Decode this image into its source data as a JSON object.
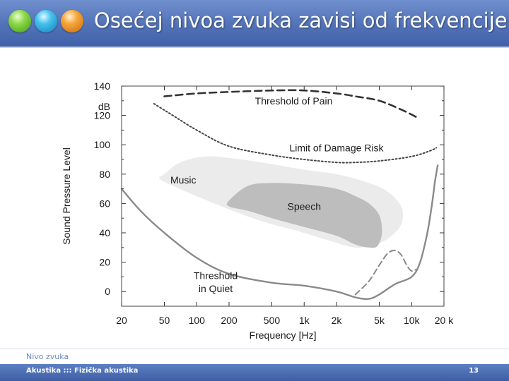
{
  "slide": {
    "title": "Osećej nivoa zvuka zavisi od frekvencije",
    "subtitle": "Nivo zvuka",
    "footer_text": "Akustika ::: Fizička akustika",
    "page_number": "13",
    "colors": {
      "header": "#5272b8",
      "footer": "#4a6ab3",
      "ball_green": "#6cc42f",
      "ball_blue": "#2ea6de",
      "ball_orange": "#ef8a1e"
    }
  },
  "chart_data": {
    "type": "line",
    "xlabel": "Frequency [Hz]",
    "ylabel": "Sound Pressure Level",
    "yunit": "dB",
    "x_scale": "log",
    "xlim": [
      20,
      20000
    ],
    "ylim": [
      -10,
      140
    ],
    "x_ticks": [
      {
        "value": 20,
        "label": "20"
      },
      {
        "value": 50,
        "label": "50"
      },
      {
        "value": 100,
        "label": "100"
      },
      {
        "value": 200,
        "label": "200"
      },
      {
        "value": 500,
        "label": "500"
      },
      {
        "value": 1000,
        "label": "1k"
      },
      {
        "value": 2000,
        "label": "2k"
      },
      {
        "value": 5000,
        "label": "5k"
      },
      {
        "value": 10000,
        "label": "10k"
      },
      {
        "value": 20000,
        "label": "20 k"
      }
    ],
    "y_ticks": [
      {
        "value": 0,
        "label": "0"
      },
      {
        "value": 20,
        "label": "20"
      },
      {
        "value": 40,
        "label": "40"
      },
      {
        "value": 60,
        "label": "60"
      },
      {
        "value": 80,
        "label": "80"
      },
      {
        "value": 100,
        "label": "100"
      },
      {
        "value": 120,
        "label": "120"
      },
      {
        "value": 140,
        "label": "140"
      }
    ],
    "series": [
      {
        "name": "Threshold of Pain",
        "style": "dashed",
        "x": [
          50,
          100,
          200,
          500,
          1000,
          2000,
          3000,
          5000,
          8000,
          11000
        ],
        "y": [
          133,
          135,
          136,
          137,
          137,
          135,
          133,
          130,
          124,
          119
        ]
      },
      {
        "name": "Limit of Damage Risk",
        "style": "dotted",
        "x": [
          40,
          60,
          100,
          200,
          500,
          1000,
          2000,
          3000,
          5000,
          10000,
          15000,
          17000
        ],
        "y": [
          128,
          120,
          110,
          99,
          93,
          90,
          88,
          88,
          89,
          92,
          96,
          98
        ]
      },
      {
        "name": "Threshold in Quiet",
        "style": "solid",
        "x": [
          20,
          30,
          50,
          100,
          200,
          500,
          1000,
          2000,
          3000,
          4000,
          5000,
          7000,
          10000,
          12000,
          14000,
          15500,
          16500,
          17500
        ],
        "y": [
          70,
          55,
          40,
          23,
          12,
          6,
          4,
          0,
          -4,
          -5,
          -2,
          5,
          10,
          20,
          40,
          60,
          75,
          86
        ]
      },
      {
        "name": "",
        "style": "dashed",
        "x": [
          3000,
          4000,
          5000,
          6000,
          7000,
          8000,
          9000,
          10000,
          11000
        ],
        "y": [
          -2,
          7,
          18,
          26,
          28,
          25,
          18,
          14,
          15
        ]
      }
    ],
    "regions": [
      {
        "name": "Music",
        "x": [
          50,
          70,
          120,
          200,
          400,
          1000,
          2000,
          4000,
          6000,
          8000,
          8200,
          7000,
          5000,
          3000,
          1500,
          800,
          400,
          200,
          100,
          60,
          45
        ],
        "y": [
          80,
          88,
          92,
          91,
          88,
          83,
          80,
          74,
          68,
          58,
          48,
          40,
          33,
          30,
          36,
          42,
          48,
          56,
          65,
          72,
          77
        ]
      },
      {
        "name": "Speech",
        "x": [
          200,
          300,
          500,
          1000,
          2000,
          3000,
          4000,
          5000,
          5300,
          4800,
          4000,
          3000,
          2000,
          1000,
          500,
          300,
          200
        ],
        "y": [
          62,
          72,
          74,
          73,
          70,
          65,
          60,
          52,
          40,
          31,
          30,
          32,
          38,
          44,
          50,
          55,
          58
        ]
      }
    ],
    "annotations": [
      {
        "text": "Threshold of Pain",
        "x": 800,
        "y": 130
      },
      {
        "text": "Limit of Damage Risk",
        "x": 2000,
        "y": 98
      },
      {
        "text": "Music",
        "x": 75,
        "y": 76
      },
      {
        "text": "Speech",
        "x": 1000,
        "y": 58
      },
      {
        "text": "Threshold",
        "x": 150,
        "y": 11
      },
      {
        "text": "in Quiet",
        "x": 150,
        "y": 2
      }
    ],
    "grid": false,
    "legend": "none"
  }
}
